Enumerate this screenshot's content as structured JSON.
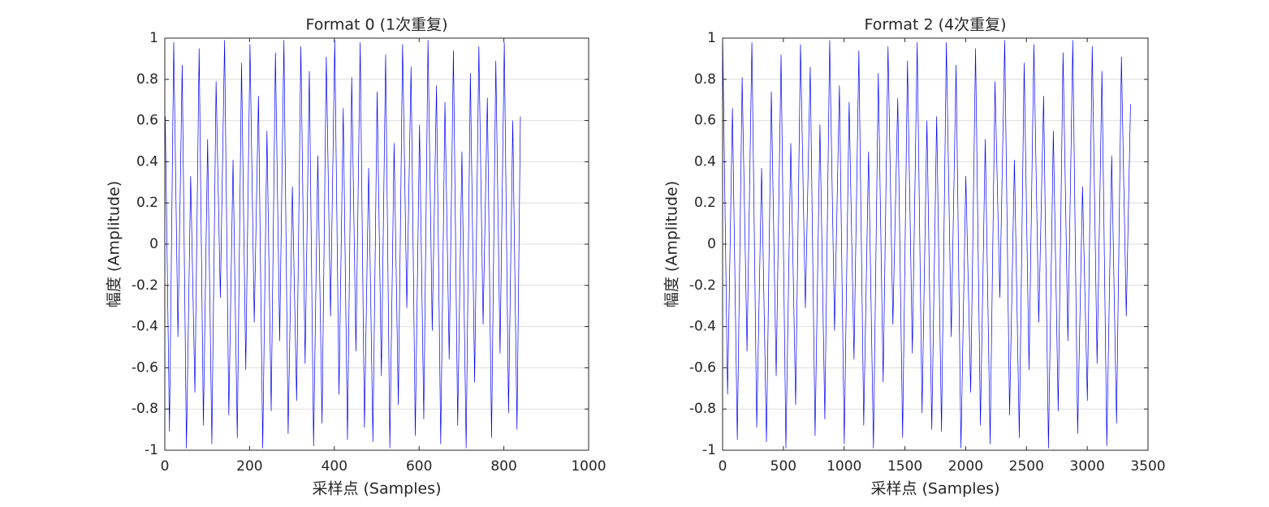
{
  "chart_data": [
    {
      "type": "line",
      "title": "Format 0 (1次重复)",
      "x_label": "采样点 (Samples)",
      "y_label": "幅度 (Amplitude)",
      "xlim": [
        0,
        1000
      ],
      "xticks": [
        0,
        200,
        400,
        600,
        800,
        1000
      ],
      "ylim": [
        -1,
        1
      ],
      "yticks": [
        -1,
        -0.8,
        -0.6,
        -0.4,
        -0.2,
        0,
        0.2,
        0.4,
        0.6,
        0.8,
        1
      ],
      "grid": true,
      "x": [
        1,
        11,
        21,
        31,
        41,
        51,
        61,
        71,
        81,
        91,
        101,
        111,
        121,
        131,
        141,
        151,
        161,
        171,
        181,
        191,
        201,
        211,
        221,
        231,
        241,
        251,
        261,
        271,
        281,
        291,
        301,
        311,
        321,
        331,
        341,
        351,
        361,
        371,
        381,
        391,
        401,
        411,
        421,
        431,
        441,
        451,
        461,
        471,
        481,
        491,
        501,
        511,
        521,
        531,
        541,
        551,
        561,
        571,
        581,
        591,
        601,
        611,
        621,
        631,
        641,
        651,
        661,
        671,
        681,
        691,
        701,
        711,
        721,
        731,
        741,
        751,
        761,
        771,
        781,
        791,
        801,
        811,
        821,
        831,
        839
      ],
      "series": [
        {
          "name": "Format 0",
          "color": "#0000ff",
          "values": [
            0.62,
            -0.91,
            0.98,
            -0.45,
            0.87,
            -0.99,
            0.33,
            -0.72,
            0.95,
            -0.88,
            0.51,
            -0.97,
            0.79,
            -0.26,
            0.99,
            -0.83,
            0.41,
            -0.94,
            0.88,
            -0.61,
            0.97,
            -0.38,
            0.72,
            -0.99,
            0.55,
            -0.81,
            0.93,
            -0.47,
            0.99,
            -0.92,
            0.28,
            -0.76,
            0.96,
            -0.58,
            0.84,
            -0.98,
            0.43,
            -0.87,
            0.91,
            -0.35,
            0.99,
            -0.73,
            0.66,
            -0.95,
            0.81,
            -0.52,
            0.98,
            -0.89,
            0.37,
            -0.96,
            0.74,
            -0.64,
            0.92,
            -0.99,
            0.49,
            -0.78,
            0.97,
            -0.31,
            0.86,
            -0.93,
            0.58,
            -0.85,
            0.99,
            -0.42,
            0.77,
            -0.97,
            0.69,
            -0.56,
            0.94,
            -0.88,
            0.45,
            -0.99,
            0.83,
            -0.67,
            0.96,
            -0.39,
            0.71,
            -0.94,
            0.89,
            -0.53,
            0.98,
            -0.82,
            0.6,
            -0.9,
            0.62
          ]
        }
      ]
    },
    {
      "type": "line",
      "title": "Format 2 (4次重复)",
      "x_label": "采样点 (Samples)",
      "y_label": "幅度 (Amplitude)",
      "xlim": [
        0,
        3500
      ],
      "xticks": [
        0,
        500,
        1000,
        1500,
        2000,
        2500,
        3000,
        3500
      ],
      "ylim": [
        -1,
        1
      ],
      "yticks": [
        -1,
        -0.8,
        -0.6,
        -0.4,
        -0.2,
        0,
        0.2,
        0.4,
        0.6,
        0.8,
        1
      ],
      "grid": true,
      "x": [
        1,
        41,
        81,
        121,
        161,
        201,
        241,
        281,
        321,
        361,
        401,
        441,
        481,
        521,
        561,
        601,
        641,
        681,
        721,
        761,
        801,
        841,
        881,
        921,
        961,
        1001,
        1041,
        1081,
        1121,
        1161,
        1201,
        1241,
        1281,
        1321,
        1361,
        1401,
        1441,
        1481,
        1521,
        1561,
        1601,
        1641,
        1681,
        1721,
        1761,
        1801,
        1841,
        1881,
        1921,
        1961,
        2001,
        2041,
        2081,
        2121,
        2161,
        2201,
        2241,
        2281,
        2321,
        2361,
        2401,
        2441,
        2481,
        2521,
        2561,
        2601,
        2641,
        2681,
        2721,
        2761,
        2801,
        2841,
        2881,
        2921,
        2961,
        3001,
        3041,
        3081,
        3121,
        3161,
        3201,
        3241,
        3281,
        3321,
        3356
      ],
      "series": [
        {
          "name": "Format 2",
          "color": "#0000ff",
          "values": [
            0.99,
            -0.73,
            0.66,
            -0.95,
            0.81,
            -0.52,
            0.98,
            -0.89,
            0.37,
            -0.96,
            0.74,
            -0.64,
            0.92,
            -0.99,
            0.49,
            -0.78,
            0.97,
            -0.31,
            0.86,
            -0.93,
            0.58,
            -0.85,
            0.99,
            -0.42,
            0.77,
            -0.97,
            0.69,
            -0.56,
            0.94,
            -0.88,
            0.45,
            -0.99,
            0.83,
            -0.67,
            0.96,
            -0.39,
            0.71,
            -0.94,
            0.89,
            -0.53,
            0.98,
            -0.82,
            0.6,
            -0.9,
            0.62,
            -0.91,
            0.98,
            -0.45,
            0.87,
            -0.99,
            0.33,
            -0.72,
            0.95,
            -0.88,
            0.51,
            -0.97,
            0.79,
            -0.26,
            0.99,
            -0.83,
            0.41,
            -0.94,
            0.88,
            -0.61,
            0.97,
            -0.38,
            0.72,
            -0.99,
            0.55,
            -0.81,
            0.93,
            -0.47,
            0.99,
            -0.92,
            0.28,
            -0.76,
            0.96,
            -0.58,
            0.84,
            -0.98,
            0.43,
            -0.87,
            0.91,
            -0.35,
            0.68
          ]
        }
      ]
    }
  ]
}
